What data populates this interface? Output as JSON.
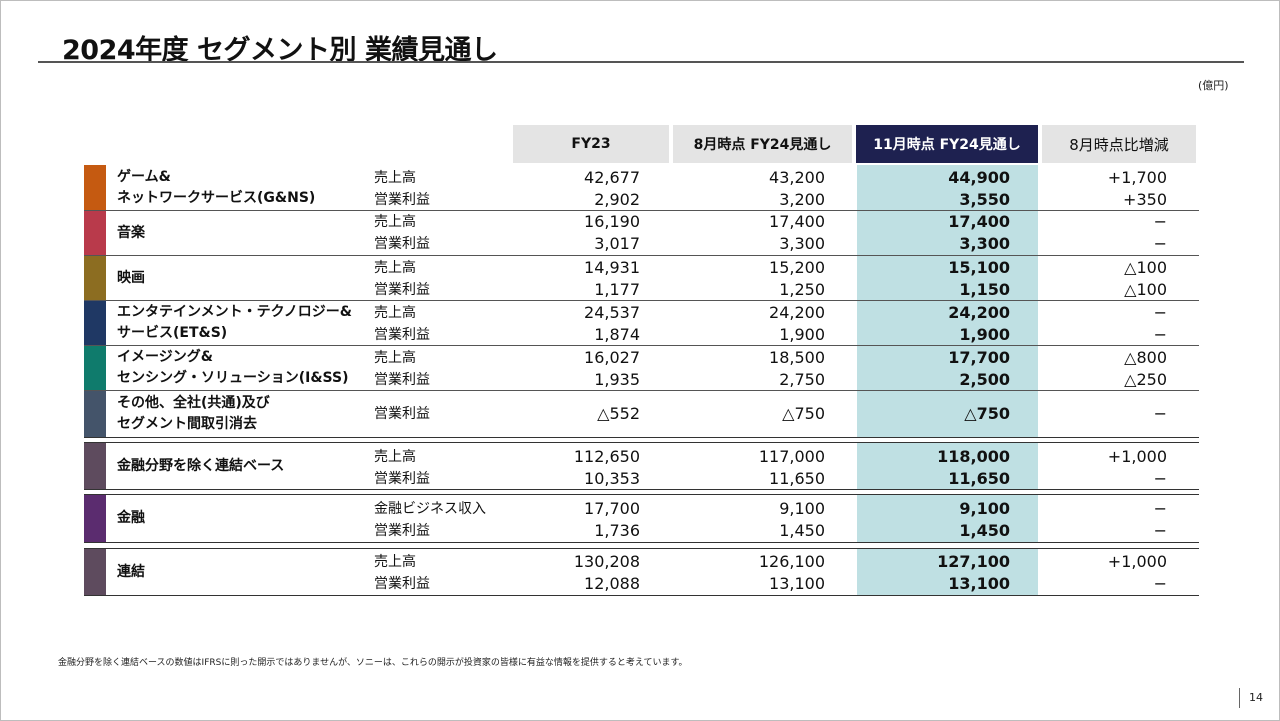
{
  "title": "2024年度 セグメント別 業績見通し",
  "unit": "(億円)",
  "headers": {
    "fy23": "FY23",
    "aug": "8月時点 FY24見通し",
    "nov": "11月時点 FY24見通し",
    "diff": "8月時点比増減"
  },
  "segments": [
    {
      "name_lines": [
        "ゲーム&",
        "ネットワークサービス(G&NS)"
      ],
      "color": "#c55a11",
      "rows": [
        {
          "metric": "売上高",
          "fy23": "42,677",
          "aug": "43,200",
          "nov": "44,900",
          "diff": "+1,700"
        },
        {
          "metric": "営業利益",
          "fy23": "2,902",
          "aug": "3,200",
          "nov": "3,550",
          "diff": "+350"
        }
      ]
    },
    {
      "name_lines": [
        "音楽"
      ],
      "color": "#b93a4b",
      "rows": [
        {
          "metric": "売上高",
          "fy23": "16,190",
          "aug": "17,400",
          "nov": "17,400",
          "diff": "−"
        },
        {
          "metric": "営業利益",
          "fy23": "3,017",
          "aug": "3,300",
          "nov": "3,300",
          "diff": "−"
        }
      ]
    },
    {
      "name_lines": [
        "映画"
      ],
      "color": "#8c6d21",
      "rows": [
        {
          "metric": "売上高",
          "fy23": "14,931",
          "aug": "15,200",
          "nov": "15,100",
          "diff": "△100"
        },
        {
          "metric": "営業利益",
          "fy23": "1,177",
          "aug": "1,250",
          "nov": "1,150",
          "diff": "△100"
        }
      ]
    },
    {
      "name_lines": [
        "エンタテインメント・テクノロジー&",
        "サービス(ET&S)"
      ],
      "color": "#1f3864",
      "rows": [
        {
          "metric": "売上高",
          "fy23": "24,537",
          "aug": "24,200",
          "nov": "24,200",
          "diff": "−"
        },
        {
          "metric": "営業利益",
          "fy23": "1,874",
          "aug": "1,900",
          "nov": "1,900",
          "diff": "−"
        }
      ]
    },
    {
      "name_lines": [
        "イメージング&",
        "センシング・ソリューション(I&SS)"
      ],
      "color": "#0f7b6c",
      "rows": [
        {
          "metric": "売上高",
          "fy23": "16,027",
          "aug": "18,500",
          "nov": "17,700",
          "diff": "△800"
        },
        {
          "metric": "営業利益",
          "fy23": "1,935",
          "aug": "2,750",
          "nov": "2,500",
          "diff": "△250"
        }
      ]
    },
    {
      "name_lines": [
        "その他、全社(共通)及び",
        "セグメント間取引消去"
      ],
      "color": "#44546a",
      "rows": [
        {
          "metric": "営業利益",
          "fy23": "△552",
          "aug": "△750",
          "nov": "△750",
          "diff": "−"
        }
      ]
    }
  ],
  "totals": [
    {
      "name_lines": [
        "金融分野を除く連結ベース"
      ],
      "color": "#5e4b5e",
      "rows": [
        {
          "metric": "売上高",
          "fy23": "112,650",
          "aug": "117,000",
          "nov": "118,000",
          "diff": "+1,000"
        },
        {
          "metric": "営業利益",
          "fy23": "10,353",
          "aug": "11,650",
          "nov": "11,650",
          "diff": "−"
        }
      ]
    },
    {
      "name_lines": [
        "金融"
      ],
      "color": "#5b2c6f",
      "rows": [
        {
          "metric": "金融ビジネス収入",
          "fy23": "17,700",
          "aug": "9,100",
          "nov": "9,100",
          "diff": "−"
        },
        {
          "metric": "営業利益",
          "fy23": "1,736",
          "aug": "1,450",
          "nov": "1,450",
          "diff": "−"
        }
      ]
    },
    {
      "name_lines": [
        "連結"
      ],
      "color": "#5e4b5e",
      "rows": [
        {
          "metric": "売上高",
          "fy23": "130,208",
          "aug": "126,100",
          "nov": "127,100",
          "diff": "+1,000"
        },
        {
          "metric": "営業利益",
          "fy23": "12,088",
          "aug": "13,100",
          "nov": "13,100",
          "diff": "−"
        }
      ]
    }
  ],
  "footnote": "金融分野を除く連結ベースの数値はIFRSに則った開示ではありませんが、ソニーは、これらの開示が投資家の皆様に有益な情報を提供すると考えています。",
  "page_number": "14"
}
